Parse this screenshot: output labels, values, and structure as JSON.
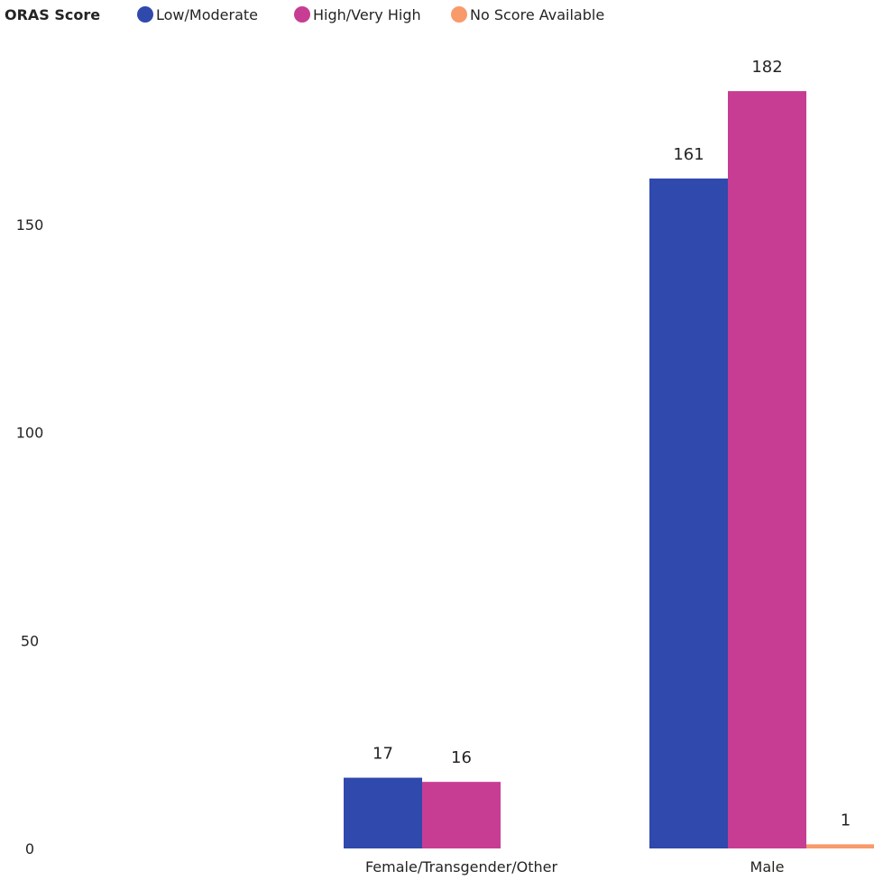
{
  "chart_data": {
    "type": "bar",
    "legend_title": "ORAS Score",
    "legend_position": "top-left",
    "categories": [
      "Female/Transgender/Other",
      "Male"
    ],
    "series": [
      {
        "name": "Low/Moderate",
        "color": "#3049AD",
        "values": [
          17,
          161
        ]
      },
      {
        "name": "High/Very High",
        "color": "#C73D94",
        "values": [
          16,
          182
        ]
      },
      {
        "name": "No Score Available",
        "color": "#F89A6A",
        "values": [
          null,
          1
        ]
      }
    ],
    "y_ticks": [
      "0",
      "50",
      "100",
      "150"
    ],
    "ylim": [
      0,
      190
    ],
    "grid": false,
    "xlabel": "",
    "ylabel": ""
  }
}
